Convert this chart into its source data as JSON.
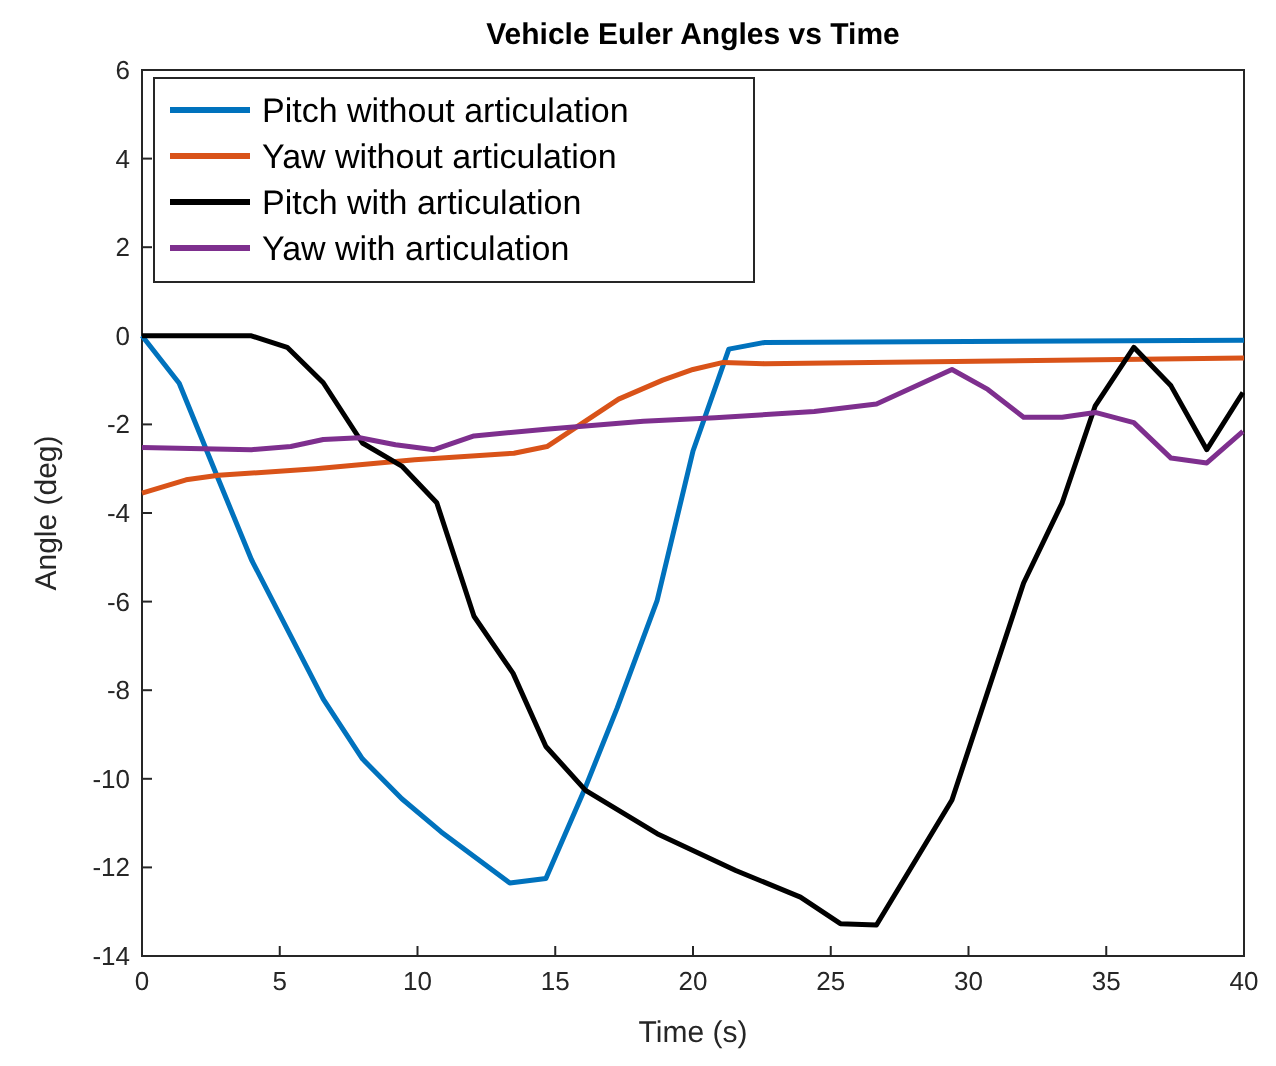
{
  "chart_data": {
    "type": "line",
    "title": "Vehicle Euler Angles vs Time",
    "xlabel": "Time (s)",
    "ylabel": "Angle (deg)",
    "xlim": [
      0,
      40
    ],
    "ylim": [
      -14,
      6
    ],
    "xticks": [
      0,
      5,
      10,
      15,
      20,
      25,
      30,
      35,
      40
    ],
    "yticks": [
      -14,
      -12,
      -10,
      -8,
      -6,
      -4,
      -2,
      0,
      2,
      4,
      6
    ],
    "grid": false,
    "legend": "top left",
    "marker": "none",
    "line_style": "solid",
    "series": [
      {
        "name": "Pitch without articulation",
        "color": "#0072bd",
        "x": [
          0,
          1.35,
          2.78,
          3.97,
          6.58,
          8.0,
          9.43,
          10.86,
          13.35,
          14.66,
          16.09,
          17.25,
          18.7,
          20.0,
          21.3,
          22.6,
          40
        ],
        "values": [
          0,
          -1.07,
          -3.25,
          -5.05,
          -8.2,
          -9.55,
          -10.45,
          -11.2,
          -12.35,
          -12.25,
          -10.2,
          -8.4,
          -5.97,
          -2.6,
          -0.3,
          -0.15,
          -0.1
        ]
      },
      {
        "name": "Yaw without articulation",
        "color": "#d95319",
        "x": [
          0,
          1.6,
          2.78,
          6.3,
          9.9,
          13.5,
          14.7,
          17.3,
          18.9,
          20.0,
          21.1,
          22.6,
          40
        ],
        "values": [
          -3.55,
          -3.25,
          -3.15,
          -3.0,
          -2.8,
          -2.65,
          -2.5,
          -1.43,
          -1.0,
          -0.76,
          -0.6,
          -0.63,
          -0.5
        ]
      },
      {
        "name": "Pitch with articulation",
        "color": "#000000",
        "x": [
          0,
          3.97,
          5.27,
          6.58,
          8.0,
          9.43,
          10.7,
          12.05,
          13.47,
          14.66,
          16.1,
          18.7,
          21.55,
          23.9,
          25.35,
          26.66,
          29.4,
          32.0,
          33.4,
          34.6,
          36.0,
          37.35,
          38.65,
          39.96
        ],
        "values": [
          0,
          0,
          -0.26,
          -1.06,
          -2.42,
          -2.94,
          -3.77,
          -6.33,
          -7.62,
          -9.27,
          -10.26,
          -11.24,
          -12.07,
          -12.67,
          -13.27,
          -13.3,
          -10.48,
          -5.58,
          -3.77,
          -1.58,
          -0.26,
          -1.13,
          -2.57,
          -1.28
        ]
      },
      {
        "name": "Yaw with articulation",
        "color": "#7e2f8e",
        "x": [
          0,
          3.97,
          5.4,
          6.58,
          7.9,
          9.2,
          10.6,
          12.05,
          14.66,
          18.2,
          20.8,
          24.4,
          26.66,
          29.4,
          30.7,
          32.0,
          33.4,
          34.6,
          36.0,
          37.35,
          38.65,
          39.96
        ],
        "values": [
          -2.52,
          -2.57,
          -2.5,
          -2.34,
          -2.3,
          -2.46,
          -2.57,
          -2.26,
          -2.11,
          -1.93,
          -1.85,
          -1.71,
          -1.54,
          -0.76,
          -1.21,
          -1.84,
          -1.84,
          -1.73,
          -1.96,
          -2.76,
          -2.87,
          -2.16
        ]
      }
    ]
  }
}
